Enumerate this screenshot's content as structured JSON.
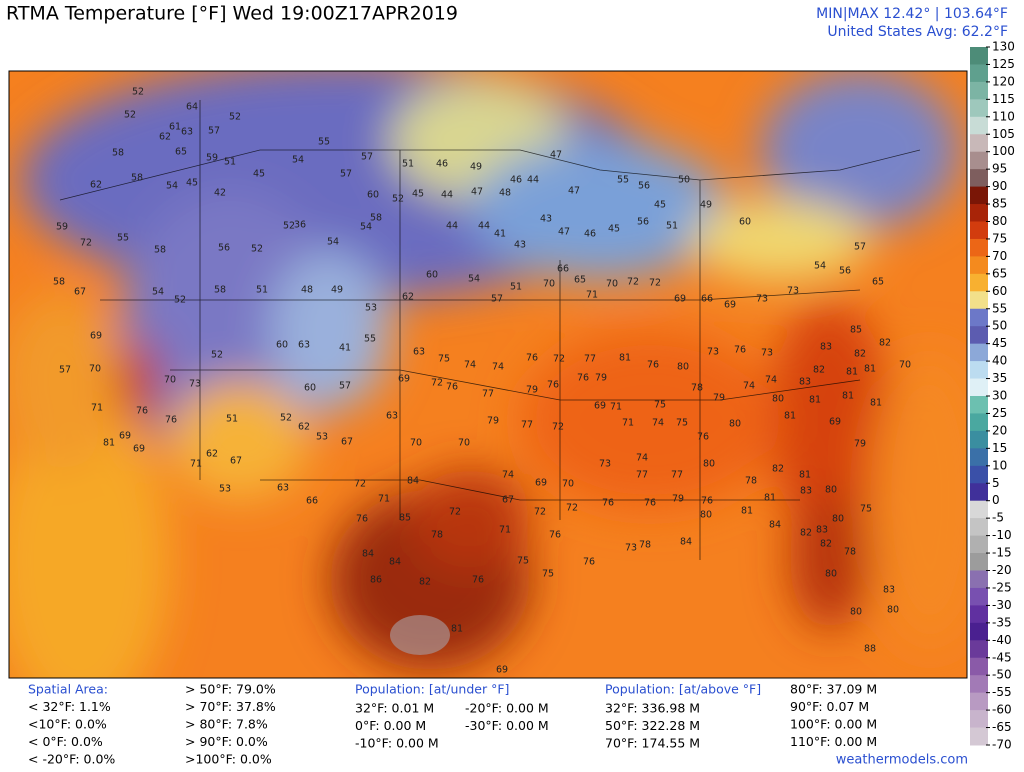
{
  "header": {
    "title": "RTMA Temperature [°F]  Wed 19:00Z17APR2019",
    "minmax": "MIN|MAX 12.42°  |  103.64°F",
    "average": "United States Avg: 62.2°F"
  },
  "legend": {
    "ticks": [
      130,
      125,
      120,
      115,
      110,
      105,
      100,
      95,
      90,
      85,
      80,
      75,
      70,
      65,
      60,
      55,
      50,
      45,
      40,
      35,
      30,
      25,
      20,
      15,
      10,
      5,
      0,
      -5,
      -10,
      -15,
      -20,
      -25,
      -30,
      -35,
      -40,
      -45,
      -50,
      -55,
      -60,
      -65,
      -70
    ],
    "colors": [
      "#4d8c78",
      "#5fa08e",
      "#7cb4a4",
      "#9ec8bc",
      "#c8dcd6",
      "#c8b8b8",
      "#a88e8e",
      "#7e5e5e",
      "#7a1606",
      "#a82408",
      "#d23c0e",
      "#ec6616",
      "#f48a1e",
      "#f8b030",
      "#f2e08a",
      "#6c78c8",
      "#5c5cb0",
      "#8ca8d8",
      "#bcdcf0",
      "#dff0f6",
      "#6cc0b0",
      "#4aa8a0",
      "#3a8ea0",
      "#3a70a8",
      "#3a50a8",
      "#40309a",
      "#d8d8d8",
      "#c4c4c4",
      "#b0b0b0",
      "#9c9c9c",
      "#8a70b0",
      "#7850b0",
      "#6030a0",
      "#4a2090",
      "#6a3a9a",
      "#8a5aa8",
      "#a27ab6",
      "#b89ac2",
      "#c8b4cc",
      "#d4c8d4"
    ]
  },
  "map": {
    "labels": [
      52,
      64,
      52,
      61,
      63,
      62,
      57,
      52,
      58,
      65,
      59,
      62,
      58,
      54,
      45,
      42,
      45,
      51,
      54,
      55,
      57,
      51,
      57,
      60,
      52,
      45,
      44,
      47,
      48,
      49,
      46,
      46,
      44,
      47,
      47,
      55,
      56,
      50,
      45,
      49,
      60,
      59,
      72,
      55,
      58,
      56,
      52,
      52,
      36,
      54,
      54,
      58,
      44,
      44,
      41,
      43,
      43,
      47,
      46,
      45,
      56,
      51,
      58,
      67,
      69,
      70,
      54,
      52,
      58,
      51,
      48,
      49,
      53,
      62,
      60,
      54,
      57,
      51,
      70,
      66,
      65,
      71,
      70,
      72,
      72,
      69,
      66,
      69,
      73,
      73,
      54,
      57,
      56,
      65,
      52,
      60,
      63,
      41,
      55,
      69,
      63,
      75,
      74,
      74,
      76,
      72,
      77,
      81,
      76,
      80,
      73,
      76,
      73,
      83,
      82,
      85,
      82,
      70,
      73,
      60,
      57,
      72,
      76,
      77,
      79,
      76,
      76,
      79,
      71,
      75,
      78,
      79,
      74,
      74,
      83,
      82,
      81,
      81,
      70,
      57,
      71,
      76,
      69,
      76,
      51,
      52,
      62,
      53,
      67,
      63,
      70,
      70,
      79,
      77,
      72,
      69,
      71,
      74,
      75,
      76,
      80,
      80,
      81,
      81,
      81,
      81,
      69,
      81,
      69,
      71,
      62,
      67,
      53,
      63,
      66,
      72,
      71,
      76,
      84,
      72,
      74,
      67,
      69,
      70,
      72,
      73,
      74,
      77,
      77,
      80,
      78,
      82,
      81,
      80,
      79,
      85,
      78,
      71,
      72,
      76,
      76,
      76,
      79,
      76,
      80,
      81,
      81,
      83,
      84,
      82,
      83,
      82,
      78,
      80,
      75,
      84,
      84,
      86,
      82,
      76,
      75,
      75,
      76,
      78,
      73,
      84,
      80,
      83,
      80,
      80,
      88,
      81,
      69
    ]
  },
  "stats": {
    "spatial_title": "Spatial Area:",
    "spatial_below": [
      "< 32°F: 1.1%",
      "<10°F: 0.0%",
      "< 0°F: 0.0%",
      "< -20°F: 0.0%"
    ],
    "spatial_above": [
      "> 50°F: 79.0%",
      "> 70°F: 37.8%",
      "> 80°F: 7.8%",
      "> 90°F: 0.0%",
      ">100°F: 0.0%"
    ],
    "under_title": "Population: [at/under °F]",
    "under_col1": [
      "32°F: 0.01 M",
      "0°F: 0.00 M",
      "-10°F: 0.00 M"
    ],
    "under_col2": [
      "-20°F: 0.00 M",
      "-30°F: 0.00 M"
    ],
    "above_title": "Population: [at/above °F]",
    "above_col1": [
      "32°F: 336.98 M",
      "50°F: 322.28 M",
      "70°F: 174.55 M"
    ],
    "above_col2": [
      "80°F: 37.09 M",
      "90°F: 0.07 M",
      "100°F: 0.00 M",
      "110°F: 0.00 M"
    ]
  },
  "footer": {
    "site": "weathermodels.com"
  }
}
